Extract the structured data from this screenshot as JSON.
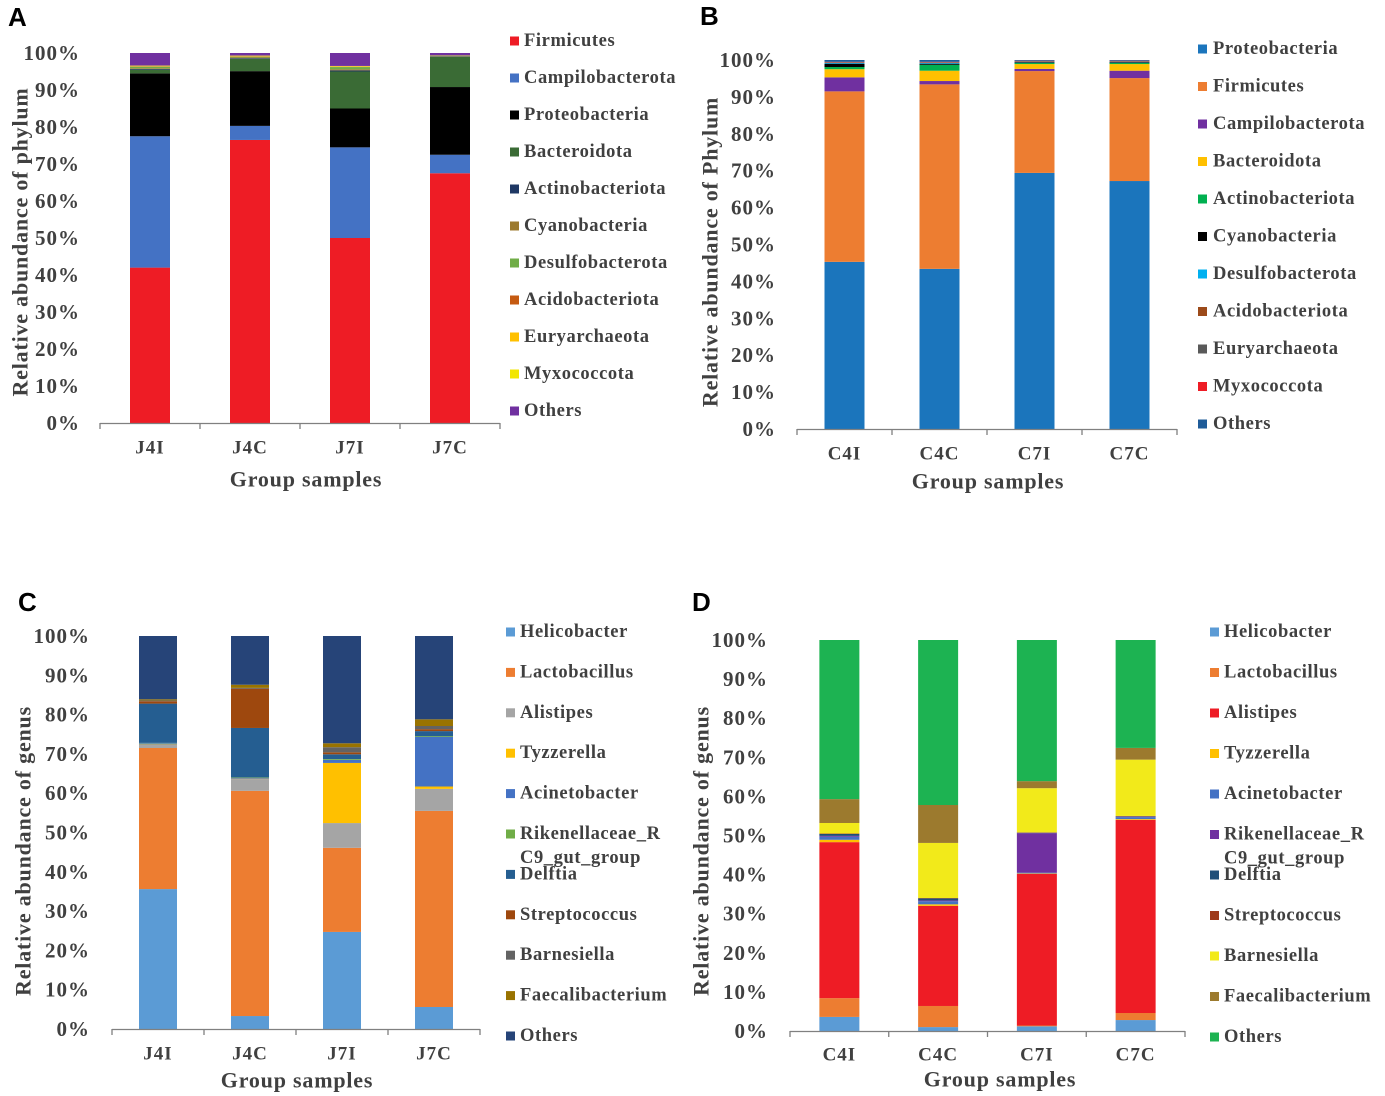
{
  "chart_data": [
    {
      "panel": "A",
      "type": "bar",
      "stacked": true,
      "ylabel": "Relative abundance of phylum",
      "xlabel": "Group samples",
      "categories": [
        "J4I",
        "J4C",
        "J7I",
        "J7C"
      ],
      "ylim": [
        0,
        100
      ],
      "yticks": [
        0,
        10,
        20,
        30,
        40,
        50,
        60,
        70,
        80,
        90,
        100
      ],
      "ytick_labels": [
        "0%",
        "10%",
        "20%",
        "30%",
        "40%",
        "50%",
        "60%",
        "70%",
        "80%",
        "90%",
        "100%"
      ],
      "grid": false,
      "legend_position": "right",
      "series": [
        {
          "label": [
            "Firmicutes"
          ],
          "color": "#ee1c25",
          "values": [
            42.0,
            76.5,
            50.0,
            67.5
          ]
        },
        {
          "label": [
            "Campilobacterota"
          ],
          "color": "#4472c4",
          "values": [
            35.5,
            3.8,
            24.5,
            5.0
          ]
        },
        {
          "label": [
            "Proteobacteria"
          ],
          "color": "#000000",
          "values": [
            17.0,
            14.8,
            10.5,
            18.3
          ]
        },
        {
          "label": [
            "Bacteroidota"
          ],
          "color": "#3a6b35",
          "values": [
            1.0,
            3.3,
            10.0,
            8.2
          ]
        },
        {
          "label": [
            "Actinobacteriota"
          ],
          "color": "#1f3864",
          "values": [
            0.2,
            0.2,
            0.3,
            0.1
          ]
        },
        {
          "label": [
            "Cyanobacteria"
          ],
          "color": "#9c7a2e",
          "values": [
            0.2,
            0.2,
            0.3,
            0.1
          ]
        },
        {
          "label": [
            "Desulfobacterota"
          ],
          "color": "#70ad47",
          "values": [
            0.4,
            0.2,
            0.6,
            0.1
          ]
        },
        {
          "label": [
            "Acidobacteriota"
          ],
          "color": "#c55a11",
          "values": [
            0.1,
            0.1,
            0.1,
            0.1
          ]
        },
        {
          "label": [
            "Euryarchaeota"
          ],
          "color": "#ffc000",
          "values": [
            0.1,
            0.1,
            0.1,
            0.0
          ]
        },
        {
          "label": [
            "Myxococcota"
          ],
          "color": "#f2e600",
          "values": [
            0.1,
            0.1,
            0.1,
            0.0
          ]
        },
        {
          "label": [
            "Others"
          ],
          "color": "#7030a0",
          "values": [
            3.4,
            0.7,
            3.5,
            0.6
          ]
        }
      ]
    },
    {
      "panel": "B",
      "type": "bar",
      "stacked": true,
      "ylabel": "Relative abundance of Phylum",
      "xlabel": "Group samples",
      "categories": [
        "C4I",
        "C4C",
        "C7I",
        "C7C"
      ],
      "ylim": [
        0,
        100
      ],
      "yticks": [
        0,
        10,
        20,
        30,
        40,
        50,
        60,
        70,
        80,
        90,
        100
      ],
      "ytick_labels": [
        "0%",
        "10%",
        "20%",
        "30%",
        "40%",
        "50%",
        "60%",
        "70%",
        "80%",
        "90%",
        "100%"
      ],
      "grid": false,
      "legend_position": "right",
      "series": [
        {
          "label": [
            "Proteobacteria"
          ],
          "color": "#1b75bc",
          "values": [
            45.3,
            43.4,
            69.4,
            67.2
          ]
        },
        {
          "label": [
            "Firmicutes"
          ],
          "color": "#ed7d31",
          "values": [
            46.2,
            50.0,
            27.6,
            27.9
          ]
        },
        {
          "label": [
            "Campilobacterota"
          ],
          "color": "#7030a0",
          "values": [
            3.8,
            0.9,
            0.6,
            2.0
          ]
        },
        {
          "label": [
            "Bacteroidota"
          ],
          "color": "#ffc000",
          "values": [
            2.2,
            2.8,
            1.3,
            1.8
          ]
        },
        {
          "label": [
            "Actinobacteriota"
          ],
          "color": "#00b050",
          "values": [
            0.6,
            1.6,
            0.3,
            0.3
          ]
        },
        {
          "label": [
            "Cyanobacteria"
          ],
          "color": "#000000",
          "values": [
            0.9,
            0.3,
            0.2,
            0.2
          ]
        },
        {
          "label": [
            "Desulfobacterota"
          ],
          "color": "#00b0f0",
          "values": [
            0.2,
            0.2,
            0.1,
            0.1
          ]
        },
        {
          "label": [
            "Acidobacteriota"
          ],
          "color": "#9c4a1a",
          "values": [
            0.1,
            0.1,
            0.1,
            0.1
          ]
        },
        {
          "label": [
            "Euryarchaeota"
          ],
          "color": "#595959",
          "values": [
            0.1,
            0.1,
            0.1,
            0.1
          ]
        },
        {
          "label": [
            "Myxococcota"
          ],
          "color": "#ee1c25",
          "values": [
            0.1,
            0.1,
            0.1,
            0.1
          ]
        },
        {
          "label": [
            "Others"
          ],
          "color": "#1f5c99",
          "values": [
            0.5,
            0.5,
            0.2,
            0.2
          ]
        }
      ]
    },
    {
      "panel": "C",
      "type": "bar",
      "stacked": true,
      "ylabel": "Relative abundance of genus",
      "xlabel": "Group samples",
      "categories": [
        "J4I",
        "J4C",
        "J7I",
        "J7C"
      ],
      "ylim": [
        0,
        100
      ],
      "yticks": [
        0,
        10,
        20,
        30,
        40,
        50,
        60,
        70,
        80,
        90,
        100
      ],
      "ytick_labels": [
        "0%",
        "10%",
        "20%",
        "30%",
        "40%",
        "50%",
        "60%",
        "70%",
        "80%",
        "90%",
        "100%"
      ],
      "grid": false,
      "legend_position": "right",
      "series": [
        {
          "label": [
            "Helicobacter"
          ],
          "color": "#5b9bd5",
          "values": [
            35.6,
            3.3,
            24.7,
            5.6
          ]
        },
        {
          "label": [
            "Lactobacillus"
          ],
          "color": "#ed7d31",
          "values": [
            35.9,
            57.3,
            21.4,
            49.9
          ]
        },
        {
          "label": [
            "Alistipes"
          ],
          "color": "#a5a5a5",
          "values": [
            0.8,
            3.0,
            6.3,
            5.6
          ]
        },
        {
          "label": [
            "Tyzzerella"
          ],
          "color": "#ffc000",
          "values": [
            0.1,
            0.1,
            15.3,
            0.6
          ]
        },
        {
          "label": [
            "Acinetobacter"
          ],
          "color": "#4472c4",
          "values": [
            0.3,
            0.2,
            0.8,
            12.6
          ]
        },
        {
          "label": [
            "Rikenellaceae_R",
            "C9_gut_group"
          ],
          "color": "#70ad47",
          "values": [
            0.1,
            0.1,
            0.2,
            0.2
          ]
        },
        {
          "label": [
            "Delftia"
          ],
          "color": "#255e91",
          "values": [
            10.0,
            12.6,
            1.2,
            1.3
          ]
        },
        {
          "label": [
            "Streptococcus"
          ],
          "color": "#9e480e",
          "values": [
            0.6,
            10.0,
            0.5,
            0.5
          ]
        },
        {
          "label": [
            "Barnesiella"
          ],
          "color": "#636363",
          "values": [
            0.2,
            0.2,
            1.3,
            0.8
          ]
        },
        {
          "label": [
            "Faecalibacterium"
          ],
          "color": "#997300",
          "values": [
            0.3,
            0.8,
            1.0,
            1.7
          ]
        },
        {
          "label": [
            "Others"
          ],
          "color": "#264478",
          "values": [
            16.1,
            12.4,
            27.3,
            21.2
          ]
        }
      ]
    },
    {
      "panel": "D",
      "type": "bar",
      "stacked": true,
      "ylabel": "Relative abundance of genus",
      "xlabel": "Group samples",
      "categories": [
        "C4I",
        "C4C",
        "C7I",
        "C7C"
      ],
      "ylim": [
        0,
        100
      ],
      "yticks": [
        0,
        10,
        20,
        30,
        40,
        50,
        60,
        70,
        80,
        90,
        100
      ],
      "ytick_labels": [
        "0%",
        "10%",
        "20%",
        "30%",
        "40%",
        "50%",
        "60%",
        "70%",
        "80%",
        "90%",
        "100%"
      ],
      "grid": false,
      "legend_position": "right",
      "series": [
        {
          "label": [
            "Helicobacter"
          ],
          "color": "#5b9bd5",
          "values": [
            3.6,
            1.0,
            1.2,
            2.8
          ]
        },
        {
          "label": [
            "Lactobacillus"
          ],
          "color": "#ed7d31",
          "values": [
            4.8,
            5.4,
            0.2,
            1.8
          ]
        },
        {
          "label": [
            "Alistipes"
          ],
          "color": "#ee1c25",
          "values": [
            39.9,
            25.6,
            38.8,
            49.4
          ]
        },
        {
          "label": [
            "Tyzzerella"
          ],
          "color": "#ffc000",
          "values": [
            0.6,
            0.4,
            0.1,
            0.2
          ]
        },
        {
          "label": [
            "Acinetobacter"
          ],
          "color": "#4472c4",
          "values": [
            0.8,
            0.8,
            0.2,
            0.5
          ]
        },
        {
          "label": [
            "Rikenellaceae_R",
            "C9_gut_group"
          ],
          "color": "#7030a0",
          "values": [
            0.2,
            0.2,
            10.1,
            0.1
          ]
        },
        {
          "label": [
            "Delftia"
          ],
          "color": "#1f4e79",
          "values": [
            0.5,
            0.5,
            0.1,
            0.1
          ]
        },
        {
          "label": [
            "Streptococcus"
          ],
          "color": "#9e3a1a",
          "values": [
            0.1,
            0.1,
            0.1,
            0.1
          ]
        },
        {
          "label": [
            "Barnesiella"
          ],
          "color": "#f2ea1a",
          "values": [
            2.7,
            14.1,
            11.3,
            14.4
          ]
        },
        {
          "label": [
            "Faecalibacterium"
          ],
          "color": "#9c7a2e",
          "values": [
            6.1,
            9.7,
            1.8,
            3.0
          ]
        },
        {
          "label": [
            "Others"
          ],
          "color": "#1db352",
          "values": [
            40.7,
            42.2,
            36.1,
            27.6
          ]
        }
      ]
    }
  ]
}
